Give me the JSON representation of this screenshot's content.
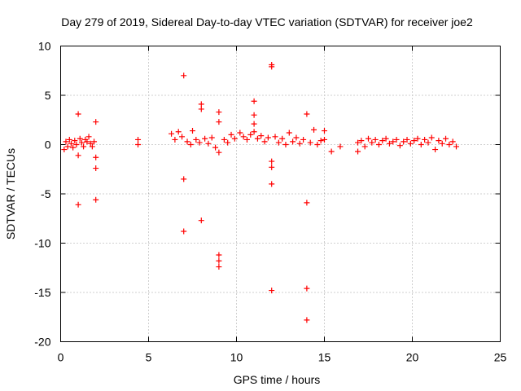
{
  "chart_data": {
    "type": "scatter",
    "title": "Day 279 of 2019, Sidereal Day-to-day VTEC variation (SDTVAR) for receiver joe2",
    "xlabel": "GPS time / hours",
    "ylabel": "SDTVAR / TECUs",
    "xlim": [
      0,
      25
    ],
    "ylim": [
      -20,
      10
    ],
    "xticks": [
      "0",
      "5",
      "10",
      "15",
      "20",
      "25"
    ],
    "yticks": [
      "-20",
      "-15",
      "-10",
      "-5",
      "0",
      "5",
      "10"
    ],
    "grid": true,
    "marker": "+",
    "color": "#ff0000",
    "series": [
      {
        "name": "SDTVAR",
        "points": [
          [
            0.2,
            -0.5
          ],
          [
            0.3,
            0.3
          ],
          [
            0.4,
            -0.2
          ],
          [
            0.5,
            0.5
          ],
          [
            0.6,
            0.1
          ],
          [
            0.7,
            -0.3
          ],
          [
            0.8,
            0.4
          ],
          [
            0.9,
            0.0
          ],
          [
            1.0,
            3.1
          ],
          [
            1.0,
            -1.1
          ],
          [
            1.0,
            -6.1
          ],
          [
            1.1,
            0.6
          ],
          [
            1.2,
            0.2
          ],
          [
            1.3,
            -0.2
          ],
          [
            1.4,
            0.5
          ],
          [
            1.5,
            0.3
          ],
          [
            1.6,
            0.8
          ],
          [
            1.7,
            0.1
          ],
          [
            1.8,
            -0.2
          ],
          [
            1.9,
            0.3
          ],
          [
            2.0,
            2.3
          ],
          [
            2.0,
            -1.3
          ],
          [
            2.0,
            -2.4
          ],
          [
            2.0,
            -5.6
          ],
          [
            4.4,
            0.5
          ],
          [
            4.4,
            0.0
          ],
          [
            6.3,
            1.1
          ],
          [
            6.5,
            0.5
          ],
          [
            6.7,
            1.3
          ],
          [
            6.9,
            0.8
          ],
          [
            7.0,
            7.0
          ],
          [
            7.0,
            -3.5
          ],
          [
            7.0,
            -8.8
          ],
          [
            7.2,
            0.3
          ],
          [
            7.4,
            0.0
          ],
          [
            7.5,
            1.4
          ],
          [
            7.7,
            0.5
          ],
          [
            7.9,
            0.2
          ],
          [
            8.0,
            4.1
          ],
          [
            8.0,
            3.6
          ],
          [
            8.0,
            -7.7
          ],
          [
            8.2,
            0.6
          ],
          [
            8.4,
            0.1
          ],
          [
            8.6,
            0.7
          ],
          [
            8.8,
            -0.3
          ],
          [
            9.0,
            3.3
          ],
          [
            9.0,
            2.3
          ],
          [
            9.0,
            -0.8
          ],
          [
            9.0,
            -11.2
          ],
          [
            9.0,
            -11.8
          ],
          [
            9.0,
            -12.4
          ],
          [
            9.3,
            0.5
          ],
          [
            9.5,
            0.2
          ],
          [
            9.7,
            1.0
          ],
          [
            9.9,
            0.6
          ],
          [
            10.2,
            1.2
          ],
          [
            10.4,
            0.8
          ],
          [
            10.6,
            0.5
          ],
          [
            10.8,
            1.0
          ],
          [
            11.0,
            4.4
          ],
          [
            11.0,
            3.0
          ],
          [
            11.0,
            2.1
          ],
          [
            11.0,
            1.3
          ],
          [
            11.2,
            0.6
          ],
          [
            11.4,
            0.9
          ],
          [
            11.6,
            0.3
          ],
          [
            11.8,
            0.7
          ],
          [
            12.0,
            8.1
          ],
          [
            12.0,
            7.9
          ],
          [
            12.0,
            -1.7
          ],
          [
            12.0,
            -2.3
          ],
          [
            12.0,
            -4.0
          ],
          [
            12.0,
            -14.8
          ],
          [
            12.2,
            0.8
          ],
          [
            12.4,
            0.2
          ],
          [
            12.6,
            0.6
          ],
          [
            12.8,
            0.0
          ],
          [
            13.0,
            1.2
          ],
          [
            13.2,
            0.3
          ],
          [
            13.4,
            0.7
          ],
          [
            13.6,
            0.1
          ],
          [
            13.8,
            0.5
          ],
          [
            14.0,
            3.1
          ],
          [
            14.0,
            -5.9
          ],
          [
            14.0,
            -14.6
          ],
          [
            14.0,
            -17.8
          ],
          [
            14.2,
            0.2
          ],
          [
            14.4,
            1.5
          ],
          [
            14.6,
            0.0
          ],
          [
            14.8,
            0.4
          ],
          [
            15.0,
            1.4
          ],
          [
            15.0,
            0.5
          ],
          [
            15.4,
            -0.7
          ],
          [
            15.9,
            -0.2
          ],
          [
            16.9,
            0.2
          ],
          [
            16.9,
            -0.7
          ],
          [
            17.1,
            0.4
          ],
          [
            17.3,
            -0.2
          ],
          [
            17.5,
            0.6
          ],
          [
            17.7,
            0.2
          ],
          [
            17.9,
            0.5
          ],
          [
            18.1,
            0.0
          ],
          [
            18.3,
            0.4
          ],
          [
            18.5,
            0.6
          ],
          [
            18.7,
            0.1
          ],
          [
            18.9,
            0.3
          ],
          [
            19.1,
            0.5
          ],
          [
            19.3,
            -0.1
          ],
          [
            19.5,
            0.3
          ],
          [
            19.7,
            0.5
          ],
          [
            19.9,
            0.1
          ],
          [
            20.1,
            0.4
          ],
          [
            20.3,
            0.6
          ],
          [
            20.5,
            0.0
          ],
          [
            20.7,
            0.5
          ],
          [
            20.9,
            0.2
          ],
          [
            21.1,
            0.7
          ],
          [
            21.3,
            -0.5
          ],
          [
            21.5,
            0.4
          ],
          [
            21.7,
            0.1
          ],
          [
            21.9,
            0.6
          ],
          [
            22.1,
            0.0
          ],
          [
            22.3,
            0.3
          ],
          [
            22.5,
            -0.2
          ]
        ]
      }
    ]
  }
}
